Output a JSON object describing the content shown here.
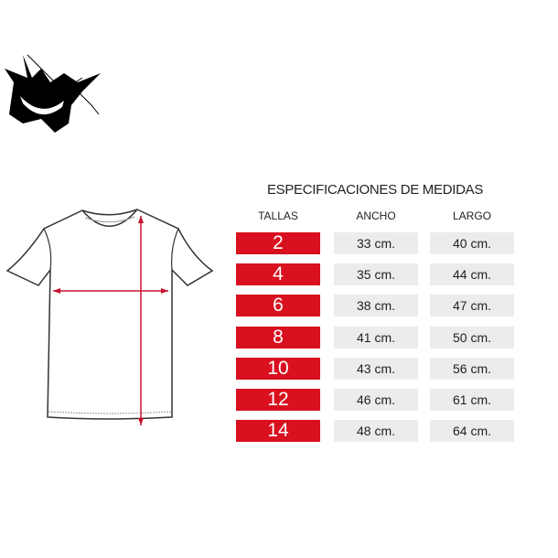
{
  "title": "ESPECIFICACIONES DE MEDIDAS",
  "headers": {
    "tallas": "TALLAS",
    "ancho": "ANCHO",
    "largo": "LARGO"
  },
  "rows": [
    {
      "talla": "2",
      "ancho": "33 cm.",
      "largo": "40 cm."
    },
    {
      "talla": "4",
      "ancho": "35 cm.",
      "largo": "44 cm."
    },
    {
      "talla": "6",
      "ancho": "38 cm.",
      "largo": "47 cm."
    },
    {
      "talla": "8",
      "ancho": "41 cm.",
      "largo": "50 cm."
    },
    {
      "talla": "10",
      "ancho": "43 cm.",
      "largo": "56 cm."
    },
    {
      "talla": "12",
      "ancho": "46 cm.",
      "largo": "61 cm."
    },
    {
      "talla": "14",
      "ancho": "48 cm.",
      "largo": "64 cm."
    }
  ],
  "colors": {
    "accent": "#d8101f",
    "cell": "#ececec"
  }
}
